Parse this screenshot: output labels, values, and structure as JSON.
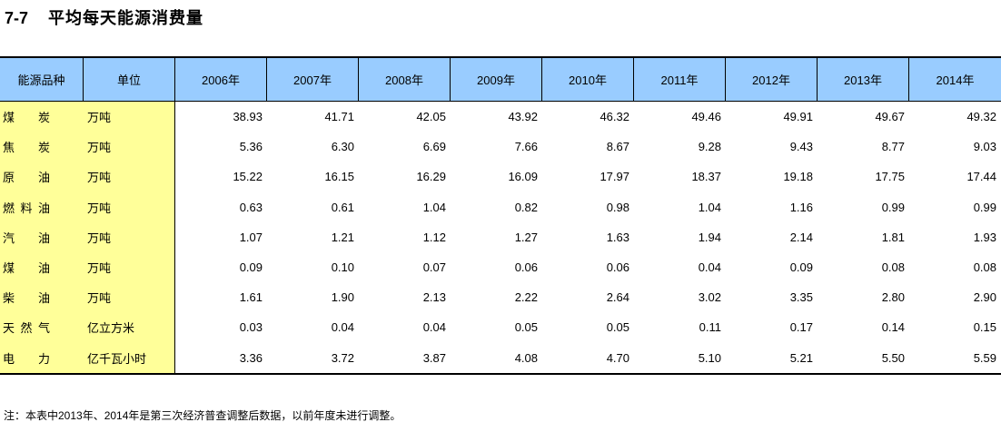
{
  "page": {
    "title_number": "7-7",
    "title": "平均每天能源消费量",
    "note": "注：本表中2013年、2014年是第三次经济普查调整后数据，以前年度未进行调整。"
  },
  "colors": {
    "header_bg": "#99CCFF",
    "label_bg": "#FFFF99",
    "data_bg": "#FFFFFF",
    "border": "#000000",
    "text": "#000000"
  },
  "table": {
    "header": {
      "energy_type": "能源品种",
      "unit": "单位",
      "years": [
        "2006年",
        "2007年",
        "2008年",
        "2009年",
        "2010年",
        "2011年",
        "2012年",
        "2013年",
        "2014年"
      ]
    },
    "rows": [
      {
        "label": "煤炭",
        "unit": "万吨",
        "values": [
          "38.93",
          "41.71",
          "42.05",
          "43.92",
          "46.32",
          "49.46",
          "49.91",
          "49.67",
          "49.32"
        ]
      },
      {
        "label": "焦炭",
        "unit": "万吨",
        "values": [
          "5.36",
          "6.30",
          "6.69",
          "7.66",
          "8.67",
          "9.28",
          "9.43",
          "8.77",
          "9.03"
        ]
      },
      {
        "label": "原油",
        "unit": "万吨",
        "values": [
          "15.22",
          "16.15",
          "16.29",
          "16.09",
          "17.97",
          "18.37",
          "19.18",
          "17.75",
          "17.44"
        ]
      },
      {
        "label": "燃料油",
        "unit": "万吨",
        "values": [
          "0.63",
          "0.61",
          "1.04",
          "0.82",
          "0.98",
          "1.04",
          "1.16",
          "0.99",
          "0.99"
        ]
      },
      {
        "label": "汽油",
        "unit": "万吨",
        "values": [
          "1.07",
          "1.21",
          "1.12",
          "1.27",
          "1.63",
          "1.94",
          "2.14",
          "1.81",
          "1.93"
        ]
      },
      {
        "label": "煤油",
        "unit": "万吨",
        "values": [
          "0.09",
          "0.10",
          "0.07",
          "0.06",
          "0.06",
          "0.04",
          "0.09",
          "0.08",
          "0.08"
        ]
      },
      {
        "label": "柴油",
        "unit": "万吨",
        "values": [
          "1.61",
          "1.90",
          "2.13",
          "2.22",
          "2.64",
          "3.02",
          "3.35",
          "2.80",
          "2.90"
        ]
      },
      {
        "label": "天然气",
        "unit": "亿立方米",
        "values": [
          "0.03",
          "0.04",
          "0.04",
          "0.05",
          "0.05",
          "0.11",
          "0.17",
          "0.14",
          "0.15"
        ]
      },
      {
        "label": "电力",
        "unit": "亿千瓦小时",
        "values": [
          "3.36",
          "3.72",
          "3.87",
          "4.08",
          "4.70",
          "5.10",
          "5.21",
          "5.50",
          "5.59"
        ]
      }
    ]
  }
}
